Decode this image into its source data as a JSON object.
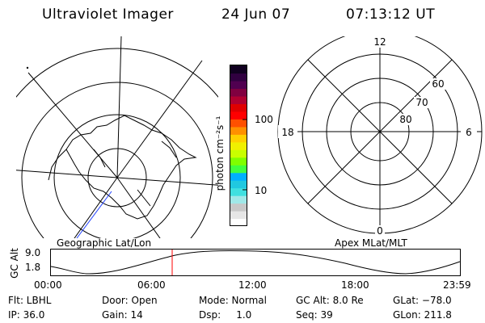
{
  "header": {
    "title": "Ultraviolet Imager",
    "date": "24 Jun 07",
    "time": "07:13:12 UT"
  },
  "colorbar": {
    "unit_label": "photon cm⁻²s⁻¹",
    "ticks": [
      "100",
      "10"
    ]
  },
  "geo_panel": {
    "label": "Geographic Lat/Lon"
  },
  "mag_panel": {
    "label": "Apex MLat/MLT",
    "mlt_labels": {
      "top": "12",
      "left": "18",
      "right": "6",
      "bottom": "0"
    },
    "lat_labels": [
      "60",
      "70",
      "80"
    ]
  },
  "altitude_plot": {
    "ylabel": "GC Alt",
    "y_ticks": [
      "9.0",
      "1.8"
    ],
    "x_ticks": [
      "00:00",
      "06:00",
      "12:00",
      "18:00",
      "23:59"
    ]
  },
  "info": {
    "flt": "Flt: LBHL",
    "ip": "IP: 36.0",
    "door": "Door: Open",
    "gain": "Gain: 14",
    "mode": "Mode: Normal",
    "dsp": "Dsp:     1.0",
    "gcalt": "GC Alt: 8.0 Re",
    "seq": "Seq: 39",
    "glat": "GLat: −78.0",
    "glon": "GLon: 211.8"
  },
  "colors": {
    "colorbar": [
      "#ffffff",
      "#e6e6e6",
      "#c8c8c8",
      "#a0e8e8",
      "#40e0e0",
      "#20c8e0",
      "#00b0ff",
      "#40ff40",
      "#80ff00",
      "#c8ff00",
      "#f0f000",
      "#ffd000",
      "#ff9000",
      "#ff5000",
      "#ff0000",
      "#e00000",
      "#b00030",
      "#800040",
      "#500050",
      "#300040",
      "#100020"
    ]
  }
}
